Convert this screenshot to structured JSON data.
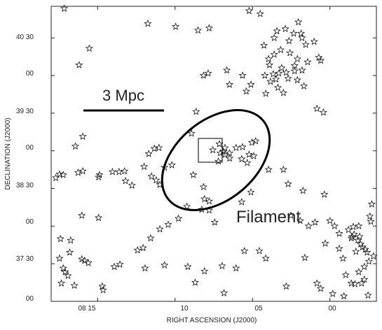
{
  "chart_data": {
    "type": "scatter",
    "xlabel": "RIGHT ASCENSION (J2000)",
    "ylabel": "DECLINATION (J2000)",
    "x_ticks": [
      {
        "value": 8.25,
        "label": "08 15"
      },
      {
        "value": 8.1667,
        "label": "10"
      },
      {
        "value": 8.0833,
        "label": "05"
      },
      {
        "value": 8.0,
        "label": "00"
      }
    ],
    "y_ticks": [
      {
        "value": 40.5,
        "label": "40 30"
      },
      {
        "value": 40.0,
        "label": "00"
      },
      {
        "value": 39.5,
        "label": "39 30"
      },
      {
        "value": 39.0,
        "label": "00"
      },
      {
        "value": 38.5,
        "label": "38 30"
      },
      {
        "value": 38.0,
        "label": "00"
      },
      {
        "value": 37.5,
        "label": "37 30"
      },
      {
        "value": 37.0,
        "label": "00"
      }
    ],
    "xlim": [
      8.3,
      7.95
    ],
    "ylim": [
      37.0,
      40.92
    ],
    "grid": false,
    "marker": "star",
    "annotations": {
      "scale_bar_label": "3 Mpc",
      "filament_label": "Filament"
    },
    "galaxies": [
      [
        8.286,
        40.89
      ],
      [
        8.27,
        40.14
      ],
      [
        8.259,
        40.36
      ],
      [
        8.196,
        40.69
      ],
      [
        8.166,
        40.65
      ],
      [
        8.142,
        40.6
      ],
      [
        8.13,
        40.63
      ],
      [
        8.087,
        40.86
      ],
      [
        8.075,
        40.82
      ],
      [
        8.048,
        40.62
      ],
      [
        8.034,
        40.71
      ],
      [
        8.017,
        40.45
      ],
      [
        8.012,
        40.24
      ],
      [
        8.01,
        40.2
      ],
      [
        8.024,
        40.18
      ],
      [
        8.03,
        40.07
      ],
      [
        8.038,
        40.06
      ],
      [
        8.047,
        40.04
      ],
      [
        8.055,
        40.03
      ],
      [
        8.061,
        40.02
      ],
      [
        8.07,
        40.0
      ],
      [
        8.064,
        39.92
      ],
      [
        8.056,
        39.84
      ],
      [
        8.058,
        39.95
      ],
      [
        8.045,
        39.96
      ],
      [
        8.038,
        40.13
      ],
      [
        8.035,
        40.22
      ],
      [
        8.043,
        40.3
      ],
      [
        8.053,
        40.34
      ],
      [
        8.06,
        40.28
      ],
      [
        8.066,
        40.22
      ],
      [
        8.044,
        40.46
      ],
      [
        8.039,
        40.56
      ],
      [
        8.03,
        40.5
      ],
      [
        8.026,
        40.41
      ],
      [
        8.031,
        40.56
      ],
      [
        8.057,
        40.59
      ],
      [
        8.06,
        40.5
      ],
      [
        8.071,
        40.4
      ],
      [
        8.065,
        40.14
      ],
      [
        8.052,
        40.1
      ],
      [
        8.035,
        39.94
      ],
      [
        8.028,
        39.86
      ],
      [
        8.014,
        39.56
      ],
      [
        8.007,
        39.51
      ],
      [
        8.069,
        39.76
      ],
      [
        8.05,
        39.77
      ],
      [
        8.085,
        39.88
      ],
      [
        8.094,
        40.0
      ],
      [
        8.111,
        40.07
      ],
      [
        8.131,
        40.03
      ],
      [
        8.136,
        40.0
      ],
      [
        8.108,
        39.88
      ],
      [
        8.09,
        39.79
      ],
      [
        8.144,
        39.52
      ],
      [
        8.149,
        39.23
      ],
      [
        8.126,
        39.01
      ],
      [
        8.118,
        38.97
      ],
      [
        8.113,
        38.95
      ],
      [
        8.108,
        38.97
      ],
      [
        8.113,
        39.04
      ],
      [
        8.119,
        39.09
      ],
      [
        8.115,
        38.99
      ],
      [
        8.101,
        39.04
      ],
      [
        8.094,
        39.05
      ],
      [
        8.084,
        39.11
      ],
      [
        8.08,
        39.13
      ],
      [
        8.087,
        38.95
      ],
      [
        8.095,
        38.89
      ],
      [
        8.108,
        38.9
      ],
      [
        8.12,
        38.86
      ],
      [
        8.082,
        38.93
      ],
      [
        8.089,
        38.84
      ],
      [
        8.066,
        38.75
      ],
      [
        8.05,
        38.75
      ],
      [
        8.045,
        38.56
      ],
      [
        8.029,
        38.47
      ],
      [
        8.006,
        38.42
      ],
      [
        8.085,
        38.45
      ],
      [
        8.095,
        38.32
      ],
      [
        8.13,
        38.33
      ],
      [
        8.147,
        38.68
      ],
      [
        8.17,
        38.81
      ],
      [
        8.183,
        38.55
      ],
      [
        8.178,
        38.78
      ],
      [
        8.195,
        38.96
      ],
      [
        8.189,
        39.03
      ],
      [
        8.184,
        39.04
      ],
      [
        8.136,
        38.52
      ],
      [
        8.135,
        38.36
      ],
      [
        8.124,
        38.05
      ],
      [
        8.13,
        38.21
      ],
      [
        8.154,
        38.26
      ],
      [
        8.163,
        38.1
      ],
      [
        8.174,
        38.02
      ],
      [
        8.193,
        37.84
      ],
      [
        8.183,
        37.96
      ],
      [
        8.201,
        37.71
      ],
      [
        8.207,
        37.68
      ],
      [
        8.226,
        37.49
      ],
      [
        8.232,
        37.46
      ],
      [
        8.244,
        37.15
      ],
      [
        8.245,
        37.2
      ],
      [
        8.275,
        37.21
      ],
      [
        8.282,
        37.34
      ],
      [
        8.285,
        37.39
      ],
      [
        8.287,
        37.44
      ],
      [
        8.289,
        37.24
      ],
      [
        8.291,
        37.57
      ],
      [
        8.28,
        37.65
      ],
      [
        8.29,
        37.83
      ],
      [
        8.279,
        37.81
      ],
      [
        8.267,
        37.56
      ],
      [
        8.264,
        37.54
      ],
      [
        8.26,
        37.51
      ],
      [
        8.267,
        38.14
      ],
      [
        8.291,
        38.69
      ],
      [
        8.295,
        38.64
      ],
      [
        8.287,
        38.68
      ],
      [
        8.271,
        38.71
      ],
      [
        8.274,
        39.06
      ],
      [
        8.266,
        39.19
      ],
      [
        8.248,
        38.68
      ],
      [
        8.249,
        38.65
      ],
      [
        8.234,
        38.72
      ],
      [
        8.227,
        38.72
      ],
      [
        8.221,
        38.73
      ],
      [
        8.22,
        38.6
      ],
      [
        8.213,
        38.54
      ],
      [
        8.2,
        38.79
      ],
      [
        8.199,
        37.44
      ],
      [
        8.178,
        37.48
      ],
      [
        8.153,
        37.46
      ],
      [
        8.114,
        37.11
      ],
      [
        8.047,
        37.2
      ],
      [
        8.01,
        37.17
      ],
      [
        8.014,
        37.24
      ],
      [
        8.027,
        37.58
      ],
      [
        8.069,
        37.57
      ],
      [
        8.076,
        37.67
      ],
      [
        8.092,
        37.67
      ],
      [
        8.101,
        37.44
      ],
      [
        8.116,
        37.47
      ],
      [
        8.135,
        37.4
      ],
      [
        8.145,
        37.25
      ],
      [
        8.042,
        38.14
      ],
      [
        8.032,
        38.07
      ],
      [
        8.023,
        38.0
      ],
      [
        8.005,
        37.77
      ],
      [
        7.99,
        37.7
      ],
      [
        7.986,
        37.57
      ],
      [
        7.983,
        37.35
      ],
      [
        7.977,
        37.24
      ],
      [
        7.973,
        37.23
      ],
      [
        7.966,
        37.24
      ],
      [
        7.969,
        37.39
      ],
      [
        7.963,
        37.46
      ],
      [
        7.958,
        37.53
      ],
      [
        7.96,
        37.65
      ],
      [
        7.962,
        37.69
      ],
      [
        7.967,
        37.76
      ],
      [
        7.97,
        37.81
      ],
      [
        7.968,
        37.86
      ],
      [
        7.974,
        37.89
      ],
      [
        7.98,
        37.95
      ],
      [
        7.975,
        37.99
      ],
      [
        7.969,
        38.0
      ],
      [
        7.956,
        38.06
      ],
      [
        7.957,
        38.13
      ],
      [
        7.955,
        38.29
      ],
      [
        7.976,
        37.86
      ],
      [
        7.953,
        37.6
      ],
      [
        7.963,
        37.29
      ],
      [
        7.985,
        37.07
      ],
      [
        7.997,
        37.1
      ],
      [
        7.959,
        37.08
      ],
      [
        7.99,
        37.9
      ],
      [
        7.977,
        37.84
      ],
      [
        7.965,
        37.72
      ],
      [
        7.972,
        37.66
      ],
      [
        8.0,
        38.07
      ],
      [
        7.995,
        38.0
      ],
      [
        8.016,
        38.05
      ],
      [
        8.138,
        38.22
      ],
      [
        8.187,
        38.61
      ],
      [
        8.266,
        38.73
      ],
      [
        8.249,
        38.11
      ],
      [
        8.192,
        38.66
      ]
    ],
    "group_center": [
      8.109,
      38.98
    ]
  }
}
